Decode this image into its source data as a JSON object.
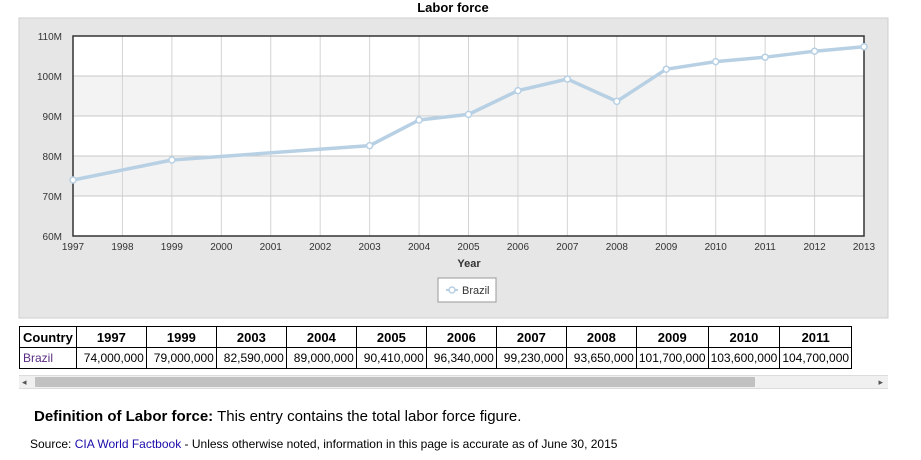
{
  "chart_data": {
    "type": "line",
    "title": "Labor force",
    "xlabel": "Year",
    "ylabel": "",
    "x_ticks": [
      "1997",
      "1998",
      "1999",
      "2000",
      "2001",
      "2002",
      "2003",
      "2004",
      "2005",
      "2006",
      "2007",
      "2008",
      "2009",
      "2010",
      "2011",
      "2012",
      "2013"
    ],
    "y_ticks": [
      "60M",
      "70M",
      "80M",
      "90M",
      "100M",
      "110M"
    ],
    "xlim": [
      1997,
      2013
    ],
    "ylim": [
      60000000,
      110000000
    ],
    "grid": true,
    "legend_position": "bottom-center",
    "series": [
      {
        "name": "Brazil",
        "color": "#b8d0e4",
        "x": [
          1997,
          1999,
          2003,
          2004,
          2005,
          2006,
          2007,
          2008,
          2009,
          2010,
          2011,
          2012,
          2013
        ],
        "y": [
          74000000,
          79000000,
          82590000,
          89000000,
          90410000,
          96340000,
          99230000,
          93650000,
          101700000,
          103600000,
          104700000,
          106200000,
          107300000
        ]
      }
    ]
  },
  "table": {
    "header_country": "Country",
    "years": [
      "1997",
      "1999",
      "2003",
      "2004",
      "2005",
      "2006",
      "2007",
      "2008",
      "2009",
      "2010",
      "2011"
    ],
    "rows": [
      {
        "country": "Brazil",
        "values": [
          "74,000,000",
          "79,000,000",
          "82,590,000",
          "89,000,000",
          "90,410,000",
          "96,340,000",
          "99,230,000",
          "93,650,000",
          "101,700,000",
          "103,600,000",
          "104,700,000"
        ]
      }
    ]
  },
  "scrollbar": {
    "left_arrow": "◂",
    "right_arrow": "▸"
  },
  "definition": {
    "label": "Definition of Labor force:",
    "text": " This entry contains the total labor force figure."
  },
  "source": {
    "prefix": "Source: ",
    "link": "CIA World Factbook",
    "suffix": " - Unless otherwise noted, information in this page is accurate as of June 30, 2015"
  },
  "colors": {
    "plot_bg_band": "#f3f3f3",
    "outer_bg": "#e6e6e6",
    "series_line": "#b8d0e4"
  }
}
